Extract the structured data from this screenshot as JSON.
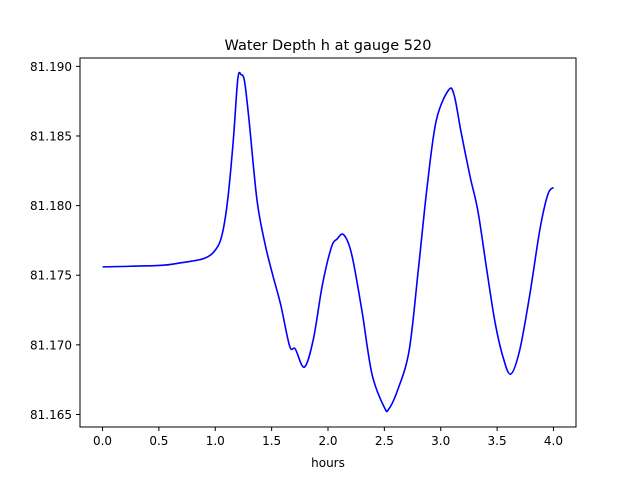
{
  "chart_data": {
    "type": "line",
    "title": "Water Depth h at gauge 520",
    "xlabel": "hours",
    "ylabel": "",
    "xlim": [
      -0.2,
      4.2
    ],
    "ylim": [
      81.1641,
      81.1906
    ],
    "xticks": [
      0.0,
      0.5,
      1.0,
      1.5,
      2.0,
      2.5,
      3.0,
      3.5,
      4.0
    ],
    "xtick_labels": [
      "0.0",
      "0.5",
      "1.0",
      "1.5",
      "2.0",
      "2.5",
      "3.0",
      "3.5",
      "4.0"
    ],
    "yticks": [
      81.165,
      81.17,
      81.175,
      81.18,
      81.185,
      81.19
    ],
    "ytick_labels": [
      "81.165",
      "81.170",
      "81.175",
      "81.180",
      "81.185",
      "81.190"
    ],
    "grid": false,
    "series": [
      {
        "name": "h",
        "color": "#0000ff",
        "x": [
          0,
          0.5,
          0.7,
          0.9,
          1.0,
          1.06,
          1.11,
          1.16,
          1.2,
          1.23,
          1.26,
          1.3,
          1.37,
          1.44,
          1.51,
          1.58,
          1.66,
          1.71,
          1.79,
          1.87,
          1.95,
          2.03,
          2.08,
          2.14,
          2.21,
          2.3,
          2.39,
          2.5,
          2.54,
          2.62,
          2.72,
          2.8,
          2.88,
          2.96,
          3.07,
          3.12,
          3.18,
          3.26,
          3.33,
          3.41,
          3.48,
          3.55,
          3.62,
          3.7,
          3.79,
          3.88,
          3.95,
          4.0
        ],
        "y": [
          81.1756,
          81.1757,
          81.1759,
          81.1762,
          81.1768,
          81.1779,
          81.1804,
          81.1847,
          81.1891,
          81.1894,
          81.1889,
          81.1861,
          81.1804,
          81.1773,
          81.175,
          81.1729,
          81.1699,
          81.1697,
          81.1684,
          81.1704,
          81.1743,
          81.177,
          81.1776,
          81.1779,
          81.1765,
          81.1725,
          81.1679,
          81.1655,
          81.1654,
          81.1668,
          81.1696,
          81.1753,
          81.1814,
          81.1861,
          81.1883,
          81.1879,
          81.1853,
          81.1821,
          81.1796,
          81.1753,
          81.1717,
          81.1692,
          81.1679,
          81.1696,
          81.1736,
          81.1783,
          81.1808,
          81.1813
        ]
      }
    ]
  }
}
